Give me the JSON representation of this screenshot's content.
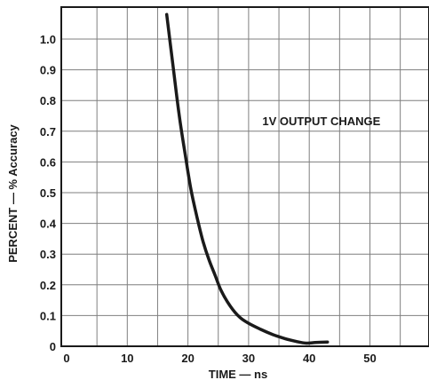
{
  "chart_data": {
    "type": "line",
    "title": "",
    "xlabel": "TIME — ns",
    "ylabel": "PERCENT — % Accuracy",
    "xlim": [
      0,
      60
    ],
    "ylim": [
      0,
      1.1
    ],
    "grid": true,
    "x_ticks": [
      {
        "value": 0,
        "label": "0"
      },
      {
        "value": 10,
        "label": "10"
      },
      {
        "value": 20,
        "label": "20"
      },
      {
        "value": 30,
        "label": "30"
      },
      {
        "value": 40,
        "label": "40"
      },
      {
        "value": 50,
        "label": "50"
      }
    ],
    "y_ticks": [
      {
        "value": 0,
        "label": "0"
      },
      {
        "value": 0.1,
        "label": "0.1"
      },
      {
        "value": 0.2,
        "label": "0.2"
      },
      {
        "value": 0.3,
        "label": "0.3"
      },
      {
        "value": 0.4,
        "label": "0.4"
      },
      {
        "value": 0.5,
        "label": "0.5"
      },
      {
        "value": 0.6,
        "label": "0.6"
      },
      {
        "value": 0.7,
        "label": "0.7"
      },
      {
        "value": 0.8,
        "label": "0.8"
      },
      {
        "value": 0.9,
        "label": "0.9"
      },
      {
        "value": 1.0,
        "label": "1.0"
      }
    ],
    "annotations": [
      {
        "text": "1V OUTPUT CHANGE",
        "x": 42,
        "y": 0.72
      }
    ],
    "series": [
      {
        "color": "#1a1a1a",
        "points": [
          [
            16.5,
            1.08
          ],
          [
            17.5,
            0.92
          ],
          [
            18.5,
            0.76
          ],
          [
            19.5,
            0.63
          ],
          [
            20.5,
            0.51
          ],
          [
            21.5,
            0.42
          ],
          [
            22.5,
            0.34
          ],
          [
            23.5,
            0.28
          ],
          [
            24.5,
            0.23
          ],
          [
            25.5,
            0.18
          ],
          [
            27,
            0.13
          ],
          [
            28.5,
            0.095
          ],
          [
            30,
            0.075
          ],
          [
            32,
            0.055
          ],
          [
            34,
            0.038
          ],
          [
            36,
            0.025
          ],
          [
            38,
            0.015
          ],
          [
            39.5,
            0.01
          ],
          [
            41,
            0.012
          ],
          [
            43,
            0.014
          ]
        ]
      }
    ]
  },
  "colors": {
    "background": "#ffffff",
    "grid": "#7f7f7f",
    "axis": "#1a1a1a",
    "curve": "#1a1a1a"
  }
}
